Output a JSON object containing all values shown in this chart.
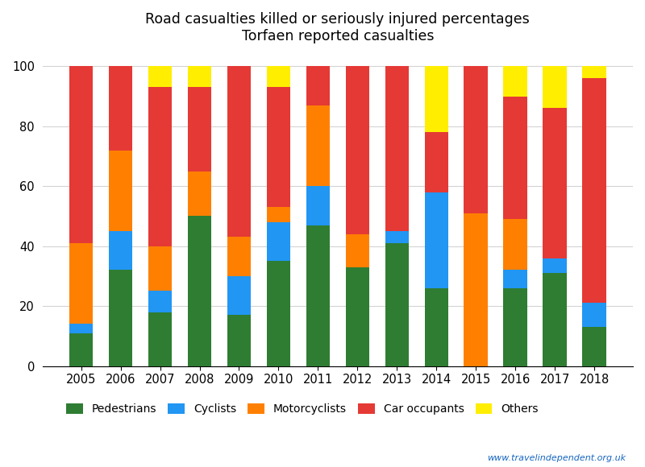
{
  "years": [
    2005,
    2006,
    2007,
    2008,
    2009,
    2010,
    2011,
    2012,
    2013,
    2014,
    2015,
    2016,
    2017,
    2018
  ],
  "pedestrians": [
    11,
    32,
    18,
    50,
    17,
    35,
    47,
    33,
    41,
    26,
    0,
    26,
    31,
    13
  ],
  "cyclists": [
    3,
    13,
    7,
    0,
    13,
    13,
    13,
    0,
    4,
    32,
    0,
    6,
    5,
    8
  ],
  "motorcyclists": [
    27,
    27,
    15,
    15,
    13,
    5,
    27,
    11,
    0,
    0,
    51,
    17,
    0,
    0
  ],
  "car_occupants": [
    59,
    28,
    53,
    28,
    57,
    40,
    13,
    56,
    55,
    20,
    49,
    41,
    50,
    75
  ],
  "others": [
    0,
    0,
    7,
    7,
    0,
    7,
    0,
    0,
    0,
    22,
    0,
    10,
    14,
    4
  ],
  "colors": {
    "pedestrians": "#2e7d32",
    "cyclists": "#2196f3",
    "motorcyclists": "#ff8000",
    "car_occupants": "#e53935",
    "others": "#ffee00"
  },
  "title_line1": "Road casualties killed or seriously injured percentages",
  "title_line2": "Torfaen reported casualties",
  "ylim": [
    0,
    105
  ],
  "yticks": [
    0,
    20,
    40,
    60,
    80,
    100
  ],
  "bar_width": 0.6,
  "watermark": "www.travelindependent.org.uk"
}
